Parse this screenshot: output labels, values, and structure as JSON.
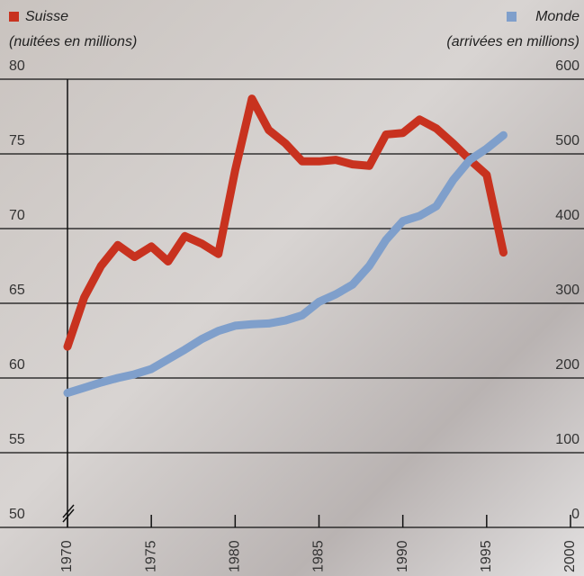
{
  "chart_data": {
    "type": "line",
    "y_label": "(nuitées en millions)",
    "y2_label": "(arrivées en millions)",
    "x": [
      1970,
      1971,
      1972,
      1973,
      1974,
      1975,
      1976,
      1977,
      1978,
      1979,
      1980,
      1981,
      1982,
      1983,
      1984,
      1985,
      1986,
      1987,
      1988,
      1989,
      1990,
      1991,
      1992,
      1993,
      1994,
      1995,
      1996
    ],
    "series": [
      {
        "name": "Suisse",
        "color": "#c8321f",
        "axis": "y",
        "values": [
          62.1,
          65.4,
          67.5,
          68.9,
          68.1,
          68.8,
          67.8,
          69.5,
          69.0,
          68.3,
          73.9,
          78.7,
          76.6,
          75.7,
          74.5,
          74.5,
          74.6,
          74.3,
          74.2,
          76.3,
          76.4,
          77.3,
          76.7,
          75.7,
          74.6,
          73.6,
          68.4
        ]
      },
      {
        "name": "Monde",
        "color": "#7f9fcb",
        "axis": "y2",
        "values": [
          180,
          187,
          194,
          200,
          205,
          212,
          225,
          238,
          252,
          263,
          270,
          272,
          273,
          277,
          284,
          302,
          312,
          325,
          350,
          385,
          410,
          417,
          430,
          465,
          492,
          507,
          525
        ]
      }
    ],
    "xlim": [
      1970,
      2000
    ],
    "xticks": [
      1970,
      1975,
      1980,
      1985,
      1990,
      1995,
      2000
    ],
    "ylim": [
      50,
      80
    ],
    "yticks": [
      50,
      55,
      60,
      65,
      70,
      75,
      80
    ],
    "y2lim": [
      0,
      600
    ],
    "y2ticks": [
      0,
      100,
      200,
      300,
      400,
      500,
      600
    ],
    "grid": true
  }
}
